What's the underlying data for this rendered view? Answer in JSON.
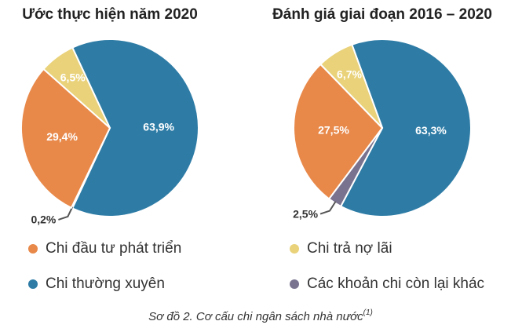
{
  "chart_data": [
    {
      "type": "pie",
      "title": "Ước thực hiện năm 2020",
      "categories": [
        "Chi thường xuyên",
        "Các khoản chi còn lại khác",
        "Chi đầu tư phát triển",
        "Chi trả nợ lãi"
      ],
      "values": [
        63.9,
        0.2,
        29.4,
        6.5
      ],
      "value_labels": [
        "63,9%",
        "0,2%",
        "29,4%",
        "6,5%"
      ],
      "colors": [
        "#2e7ca6",
        "#7a7390",
        "#e8894a",
        "#e9d27a"
      ]
    },
    {
      "type": "pie",
      "title": "Đánh giá giai đoạn 2016 – 2020",
      "categories": [
        "Chi thường xuyên",
        "Các khoản chi còn lại khác",
        "Chi đầu tư phát triển",
        "Chi trả nợ lãi"
      ],
      "values": [
        63.3,
        2.5,
        27.5,
        6.7
      ],
      "value_labels": [
        "63,3%",
        "2,5%",
        "27,5%",
        "6,7%"
      ],
      "colors": [
        "#2e7ca6",
        "#7a7390",
        "#e8894a",
        "#e9d27a"
      ]
    }
  ],
  "caption": {
    "text": "Sơ đồ 2. Cơ cấu chi ngân sách nhà nước",
    "note": "(1)"
  }
}
